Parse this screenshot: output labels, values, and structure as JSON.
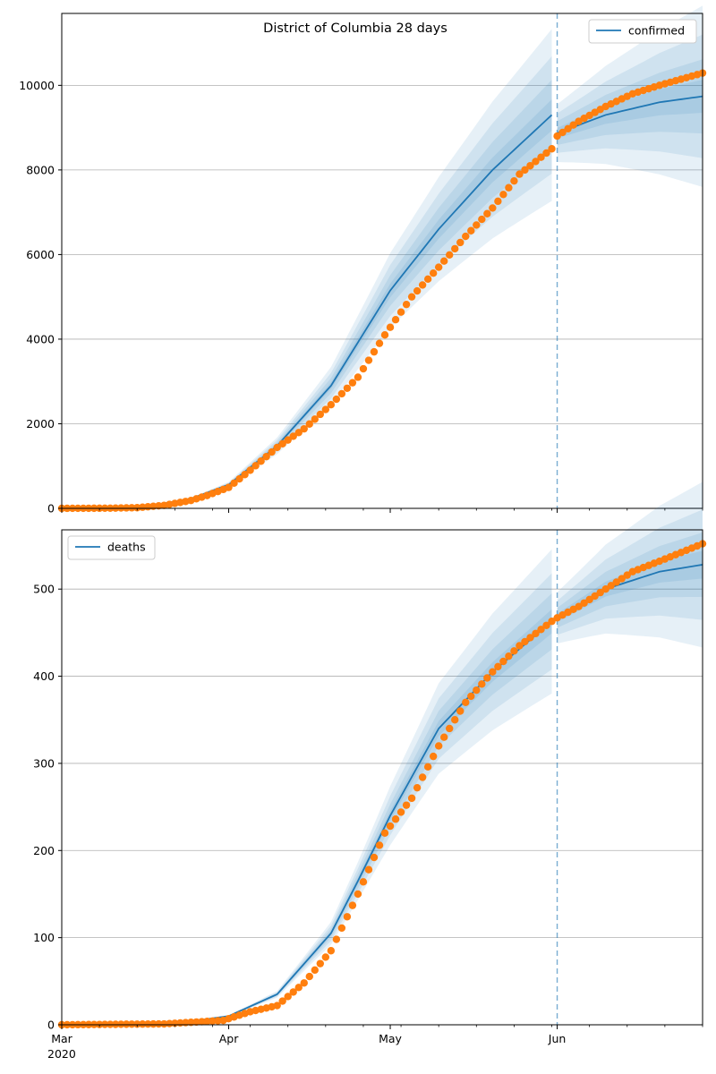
{
  "figure_title": "District of Columbia 28 days",
  "colors": {
    "model": "#1f77b4",
    "observed": "#ff7f0e",
    "band": "#1f77b4",
    "grid": "#b0b0b0",
    "forecast_line": "#1f77b4"
  },
  "x_axis": {
    "start": "2020-03-01",
    "end": "2020-06-28",
    "major_ticks": [
      {
        "date": "2020-03-01",
        "label": "Mar"
      },
      {
        "date": "2020-04-01",
        "label": "Apr"
      },
      {
        "date": "2020-05-01",
        "label": "May"
      },
      {
        "date": "2020-06-01",
        "label": "Jun"
      }
    ],
    "year_label": "2020",
    "forecast_start": "2020-06-01"
  },
  "chart_data": [
    {
      "type": "line",
      "series": [
        {
          "name": "confirmed",
          "kind": "model-median"
        },
        {
          "name": "",
          "kind": "observed-points"
        }
      ],
      "legend_position": "upper-right",
      "ylim": [
        0,
        11700
      ],
      "yticks": [
        0,
        2000,
        4000,
        6000,
        8000,
        10000
      ],
      "grid": "horizontal",
      "observed_anchors": [
        [
          "2020-03-01",
          0
        ],
        [
          "2020-03-10",
          4
        ],
        [
          "2020-03-15",
          16
        ],
        [
          "2020-03-20",
          70
        ],
        [
          "2020-03-25",
          187
        ],
        [
          "2020-03-28",
          304
        ],
        [
          "2020-04-01",
          495
        ],
        [
          "2020-04-05",
          900
        ],
        [
          "2020-04-10",
          1440
        ],
        [
          "2020-04-15",
          1880
        ],
        [
          "2020-04-20",
          2450
        ],
        [
          "2020-04-25",
          3100
        ],
        [
          "2020-04-30",
          4100
        ],
        [
          "2020-05-05",
          5000
        ],
        [
          "2020-05-10",
          5700
        ],
        [
          "2020-05-15",
          6430
        ],
        [
          "2020-05-20",
          7100
        ],
        [
          "2020-05-25",
          7900
        ],
        [
          "2020-05-31",
          8500
        ],
        [
          "2020-06-01",
          8800
        ],
        [
          "2020-06-05",
          9150
        ],
        [
          "2020-06-10",
          9500
        ],
        [
          "2020-06-15",
          9800
        ],
        [
          "2020-06-20",
          10000
        ],
        [
          "2020-06-28",
          10290
        ]
      ],
      "model_anchors": [
        [
          "2020-03-01",
          0
        ],
        [
          "2020-03-15",
          10
        ],
        [
          "2020-03-25",
          230
        ],
        [
          "2020-04-01",
          560
        ],
        [
          "2020-04-10",
          1480
        ],
        [
          "2020-04-20",
          2900
        ],
        [
          "2020-05-01",
          5150
        ],
        [
          "2020-05-10",
          6600
        ],
        [
          "2020-05-20",
          8000
        ],
        [
          "2020-05-31",
          9300
        ],
        [
          "2020-06-01",
          8870
        ],
        [
          "2020-06-10",
          9300
        ],
        [
          "2020-06-20",
          9600
        ],
        [
          "2020-06-28",
          9740
        ]
      ],
      "band_widths": [
        0.04,
        0.09,
        0.15,
        0.22
      ]
    },
    {
      "type": "line",
      "series": [
        {
          "name": "deaths",
          "kind": "model-median"
        },
        {
          "name": "",
          "kind": "observed-points"
        }
      ],
      "legend_position": "upper-left",
      "ylim": [
        0,
        568
      ],
      "yticks": [
        0,
        100,
        200,
        300,
        400,
        500
      ],
      "grid": "horizontal",
      "observed_anchors": [
        [
          "2020-03-01",
          0
        ],
        [
          "2020-03-20",
          1
        ],
        [
          "2020-03-31",
          5
        ],
        [
          "2020-04-05",
          15
        ],
        [
          "2020-04-10",
          22
        ],
        [
          "2020-04-15",
          48
        ],
        [
          "2020-04-20",
          85
        ],
        [
          "2020-04-25",
          150
        ],
        [
          "2020-04-30",
          220
        ],
        [
          "2020-05-05",
          260
        ],
        [
          "2020-05-10",
          320
        ],
        [
          "2020-05-15",
          370
        ],
        [
          "2020-05-20",
          405
        ],
        [
          "2020-05-25",
          435
        ],
        [
          "2020-05-31",
          463
        ],
        [
          "2020-06-01",
          467
        ],
        [
          "2020-06-05",
          480
        ],
        [
          "2020-06-10",
          500
        ],
        [
          "2020-06-15",
          520
        ],
        [
          "2020-06-20",
          532
        ],
        [
          "2020-06-28",
          552
        ]
      ],
      "model_anchors": [
        [
          "2020-03-01",
          0
        ],
        [
          "2020-03-25",
          4
        ],
        [
          "2020-04-01",
          10
        ],
        [
          "2020-04-10",
          35
        ],
        [
          "2020-04-20",
          105
        ],
        [
          "2020-04-25",
          165
        ],
        [
          "2020-05-01",
          240
        ],
        [
          "2020-05-10",
          340
        ],
        [
          "2020-05-20",
          405
        ],
        [
          "2020-05-31",
          463
        ],
        [
          "2020-06-01",
          467
        ],
        [
          "2020-06-10",
          500
        ],
        [
          "2020-06-20",
          520
        ],
        [
          "2020-06-28",
          528
        ]
      ],
      "band_widths": [
        0.03,
        0.07,
        0.12,
        0.18
      ]
    }
  ]
}
